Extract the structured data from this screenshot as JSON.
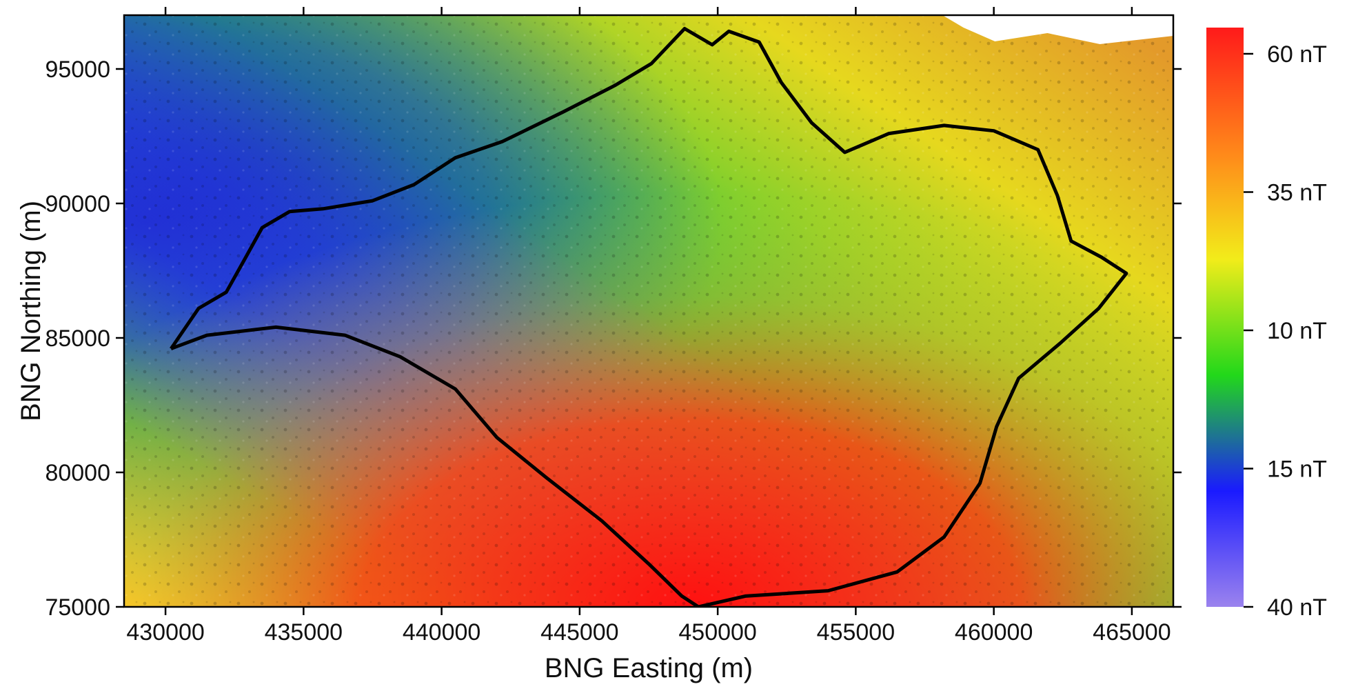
{
  "map": {
    "type": "heatmap",
    "description_kind": "aeromagnetic anomaly map with coastline",
    "xlabel": "BNG Easting (m)",
    "ylabel": "BNG Northing (m)",
    "xlim": [
      428500,
      466500
    ],
    "ylim": [
      75000,
      97000
    ],
    "x_ticks": [
      430000,
      435000,
      440000,
      445000,
      450000,
      455000,
      460000,
      465000
    ],
    "y_ticks": [
      75000,
      80000,
      85000,
      90000,
      95000
    ],
    "x_tick_labels": [
      "430000",
      "435000",
      "440000",
      "445000",
      "450000",
      "455000",
      "460000",
      "465000"
    ],
    "y_tick_labels": [
      "75000",
      "80000",
      "85000",
      "90000",
      "95000"
    ],
    "colorbar": {
      "labels": [
        "60 nT",
        "35 nT",
        "10 nT",
        "15 nT",
        "40 nT"
      ],
      "colors": [
        "#ff1a1a",
        "#ff8a1a",
        "#f2ec1a",
        "#22d81a",
        "#1a1aff",
        "#9b83ee"
      ]
    },
    "coastline": [
      [
        430200,
        84600
      ],
      [
        431500,
        85100
      ],
      [
        434000,
        85400
      ],
      [
        436500,
        85100
      ],
      [
        438500,
        84300
      ],
      [
        440500,
        83100
      ],
      [
        442000,
        81300
      ],
      [
        443800,
        79800
      ],
      [
        445800,
        78200
      ],
      [
        447500,
        76600
      ],
      [
        448700,
        75400
      ],
      [
        449300,
        75000
      ],
      [
        451000,
        75400
      ],
      [
        454000,
        75600
      ],
      [
        456500,
        76300
      ],
      [
        458200,
        77600
      ],
      [
        459500,
        79600
      ],
      [
        460100,
        81700
      ],
      [
        460900,
        83500
      ],
      [
        462400,
        84800
      ],
      [
        463800,
        86100
      ],
      [
        464800,
        87400
      ],
      [
        463900,
        88000
      ],
      [
        462800,
        88600
      ],
      [
        462300,
        90300
      ],
      [
        461600,
        92000
      ],
      [
        460000,
        92700
      ],
      [
        458200,
        92900
      ],
      [
        456200,
        92600
      ],
      [
        454600,
        91900
      ],
      [
        453400,
        93000
      ],
      [
        452300,
        94500
      ],
      [
        451500,
        96000
      ],
      [
        450400,
        96400
      ],
      [
        449800,
        95900
      ],
      [
        448800,
        96500
      ],
      [
        447600,
        95200
      ],
      [
        446300,
        94400
      ],
      [
        444400,
        93400
      ],
      [
        442200,
        92300
      ],
      [
        440500,
        91700
      ],
      [
        439000,
        90700
      ],
      [
        437500,
        90100
      ],
      [
        435700,
        89800
      ],
      [
        434500,
        89700
      ],
      [
        433500,
        89100
      ],
      [
        432800,
        87800
      ],
      [
        432200,
        86700
      ],
      [
        431200,
        86100
      ],
      [
        430200,
        84600
      ]
    ]
  }
}
